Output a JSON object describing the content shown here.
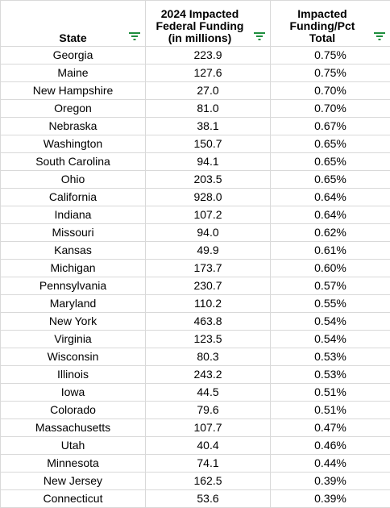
{
  "table": {
    "headers": [
      [
        "State"
      ],
      [
        "2024 Impacted",
        "Federal Funding",
        "(in millions)"
      ],
      [
        "Impacted",
        "Funding/Pct",
        "Total"
      ]
    ],
    "filter_icon_color": "#1e8e3e",
    "gridline_color": "#d9d9d9",
    "rows": [
      [
        "Georgia",
        "223.9",
        "0.75%"
      ],
      [
        "Maine",
        "127.6",
        "0.75%"
      ],
      [
        "New Hampshire",
        "27.0",
        "0.70%"
      ],
      [
        "Oregon",
        "81.0",
        "0.70%"
      ],
      [
        "Nebraska",
        "38.1",
        "0.67%"
      ],
      [
        "Washington",
        "150.7",
        "0.65%"
      ],
      [
        "South Carolina",
        "94.1",
        "0.65%"
      ],
      [
        "Ohio",
        "203.5",
        "0.65%"
      ],
      [
        "California",
        "928.0",
        "0.64%"
      ],
      [
        "Indiana",
        "107.2",
        "0.64%"
      ],
      [
        "Missouri",
        "94.0",
        "0.62%"
      ],
      [
        "Kansas",
        "49.9",
        "0.61%"
      ],
      [
        "Michigan",
        "173.7",
        "0.60%"
      ],
      [
        "Pennsylvania",
        "230.7",
        "0.57%"
      ],
      [
        "Maryland",
        "110.2",
        "0.55%"
      ],
      [
        "New York",
        "463.8",
        "0.54%"
      ],
      [
        "Virginia",
        "123.5",
        "0.54%"
      ],
      [
        "Wisconsin",
        "80.3",
        "0.53%"
      ],
      [
        "Illinois",
        "243.2",
        "0.53%"
      ],
      [
        "Iowa",
        "44.5",
        "0.51%"
      ],
      [
        "Colorado",
        "79.6",
        "0.51%"
      ],
      [
        "Massachusetts",
        "107.7",
        "0.47%"
      ],
      [
        "Utah",
        "40.4",
        "0.46%"
      ],
      [
        "Minnesota",
        "74.1",
        "0.44%"
      ],
      [
        "New Jersey",
        "162.5",
        "0.39%"
      ],
      [
        "Connecticut",
        "53.6",
        "0.39%"
      ]
    ]
  }
}
